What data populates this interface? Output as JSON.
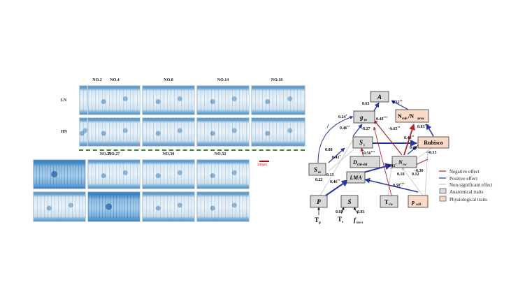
{
  "micrographs": {
    "top_columns": [
      "NO.2",
      "NO.4",
      "NO.8",
      "NO.14",
      "NO.18"
    ],
    "bottom_columns": [
      "NO.25",
      "NO.27",
      "NO.30",
      "NO.32"
    ],
    "row_labels": [
      "LN",
      "HN",
      "LN",
      "HN"
    ],
    "scale_bar": "200μm"
  },
  "diagram": {
    "nodes": {
      "A": "A",
      "gm": "g",
      "gm_sub": "m",
      "Nrub_Narea": "N",
      "Nrub_sub": "rub",
      "slash": "/N",
      "Narea_sub": "area",
      "Sc": "S",
      "Sc_sub": "c",
      "Rubisco": "Rubisco",
      "Dchl": "D",
      "Dchl_sub": "chl-chl",
      "Sm": "S",
      "Sm_sub": "m",
      "Ncw": "N",
      "Ncw_sub": "cw",
      "LMA": "LMA",
      "P": "P",
      "S": "S",
      "Tcw": "T",
      "Tcw_sub": "cw",
      "pcell": "p",
      "pcell_sub": "cell",
      "Tp": "T",
      "Tp_sub": "p",
      "Ts": "T",
      "Ts_sub": "s",
      "fias": "f",
      "fias_sub": "ias-s"
    },
    "coefficients": {
      "gm_A": "0.63",
      "Nrub_A": "0.32",
      "Nrub_A_sig": "**",
      "Sm_gm": "0.24",
      "Sm_gm_sig": "*",
      "Sc_gm": "0.46",
      "Sc_gm_sig": "**",
      "Ncw_gm": "0.48",
      "Ncw_gm_sig": "***",
      "gm_neg": "-0.27",
      "Ncw_Nrub": "-0.65",
      "Ncw_Nrub_sig": "**",
      "Rubisco_Nrub": "0.83",
      "Rubisco_Nrub_sig": "***",
      "Sc_Rubisco": "0.48",
      "Sc_Rubisco_sig": "**",
      "Ncw_Rubisco": "0.26",
      "Ncw_Rubisco_sig": "*",
      "Rubisco_neg": "-0.15",
      "Sm_Sc": "0.41",
      "Sm_Sc_sig": "*",
      "Sm_out": "0.88",
      "Dchl_Sc": "-0.56",
      "Dchl_Sc_sig": "***",
      "P_Sm": "0.13",
      "P_Sm_2": "0.22",
      "LMA_Ncw": "0.41",
      "LMA_Ncw_sig": "*",
      "Ncw_a": "0.18",
      "Ncw_b": "-0.30",
      "Ncw_c": "0.12",
      "P_LMA": "0.46",
      "P_LMA_sig": "**",
      "pcell_LMA": "0.58",
      "pcell_LMA_sig": "***",
      "Ts_S": "0.69",
      "fias_S": "0.83"
    },
    "legend": {
      "negative": "Negative effect",
      "positive": "Positive effect",
      "nonsig": "Non-significant effect",
      "anatomical": "Anatomical traits",
      "physiological": "Physiological traits"
    },
    "colors": {
      "positive": "#2b34a8",
      "negative": "#b3262b",
      "nonsig": "#c8c8c8",
      "anatomical_fill": "#d9d9d9",
      "physiological_fill": "#f9d9c7"
    }
  }
}
